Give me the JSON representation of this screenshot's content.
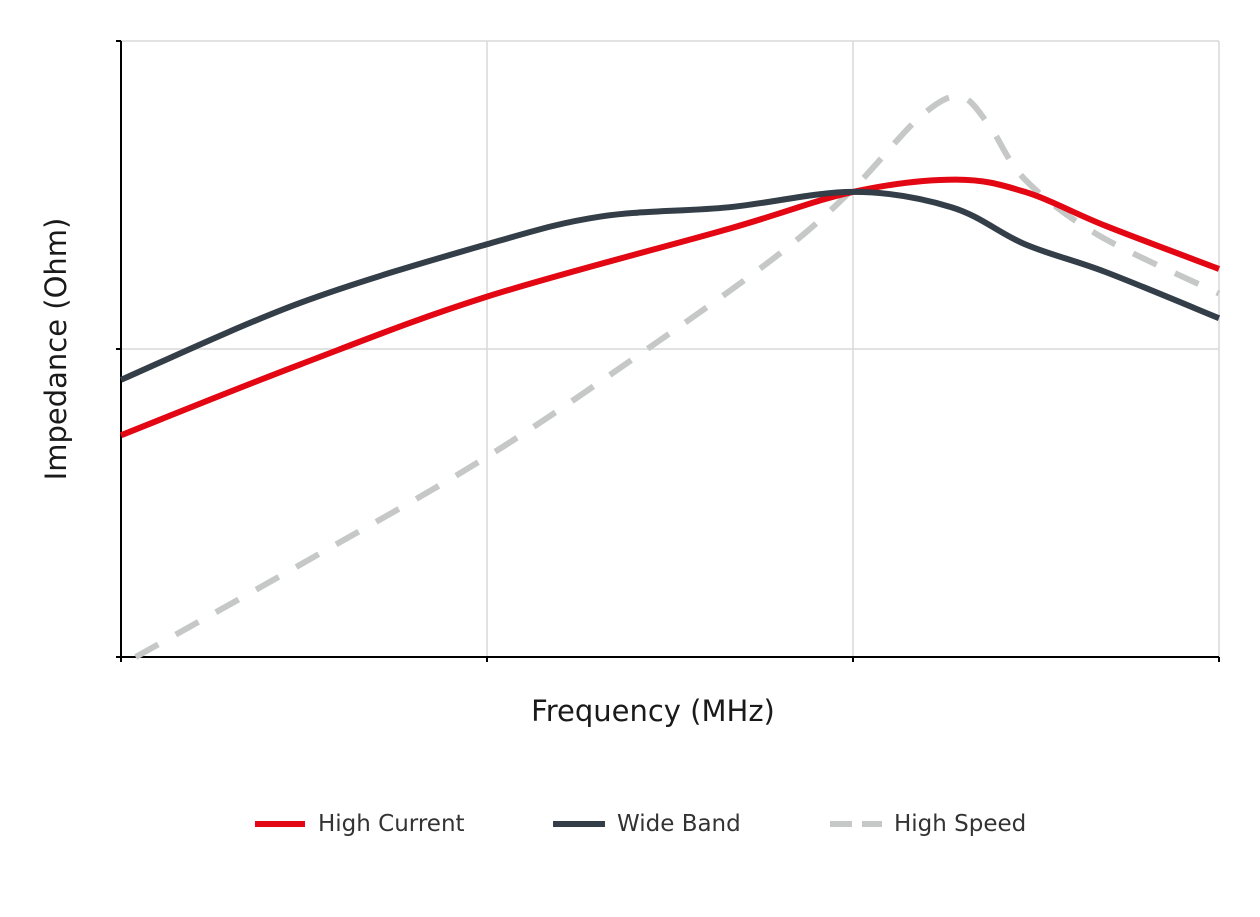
{
  "chart_data": {
    "type": "line",
    "title": "",
    "xlabel": "Frequency (MHz)",
    "ylabel": "Impedance (Ohm)",
    "x_scale": "log",
    "y_scale": "log",
    "xlim": [
      0,
      3
    ],
    "ylim": [
      0,
      2
    ],
    "x_gridlines": [
      1,
      2,
      3
    ],
    "y_gridlines": [
      1,
      2
    ],
    "tick_labels_shown": false,
    "grid": true,
    "legend_position": "bottom",
    "series": [
      {
        "name": "High Current",
        "color": "#e30613",
        "dash": "solid",
        "x": [
          0,
          0.49,
          1.0,
          1.66,
          2.0,
          2.28,
          2.47,
          2.69,
          3.0
        ],
        "y": [
          0.72,
          0.95,
          1.17,
          1.39,
          1.51,
          1.55,
          1.51,
          1.4,
          1.26
        ]
      },
      {
        "name": "Wide Band",
        "color": "#333e48",
        "dash": "solid",
        "x": [
          0,
          0.49,
          1.0,
          1.31,
          1.66,
          2.0,
          2.27,
          2.47,
          2.69,
          3.0
        ],
        "y": [
          0.9,
          1.15,
          1.34,
          1.43,
          1.46,
          1.51,
          1.46,
          1.34,
          1.25,
          1.1
        ]
      },
      {
        "name": "High Speed",
        "color": "#c6c8c8",
        "dash": "dashed",
        "x": [
          0.04,
          0.49,
          1.0,
          1.45,
          1.8,
          2.0,
          2.18,
          2.29,
          2.37,
          2.47,
          2.67,
          3.0
        ],
        "y": [
          0.0,
          0.3,
          0.65,
          1.01,
          1.31,
          1.52,
          1.75,
          1.82,
          1.73,
          1.55,
          1.37,
          1.18
        ]
      }
    ]
  }
}
